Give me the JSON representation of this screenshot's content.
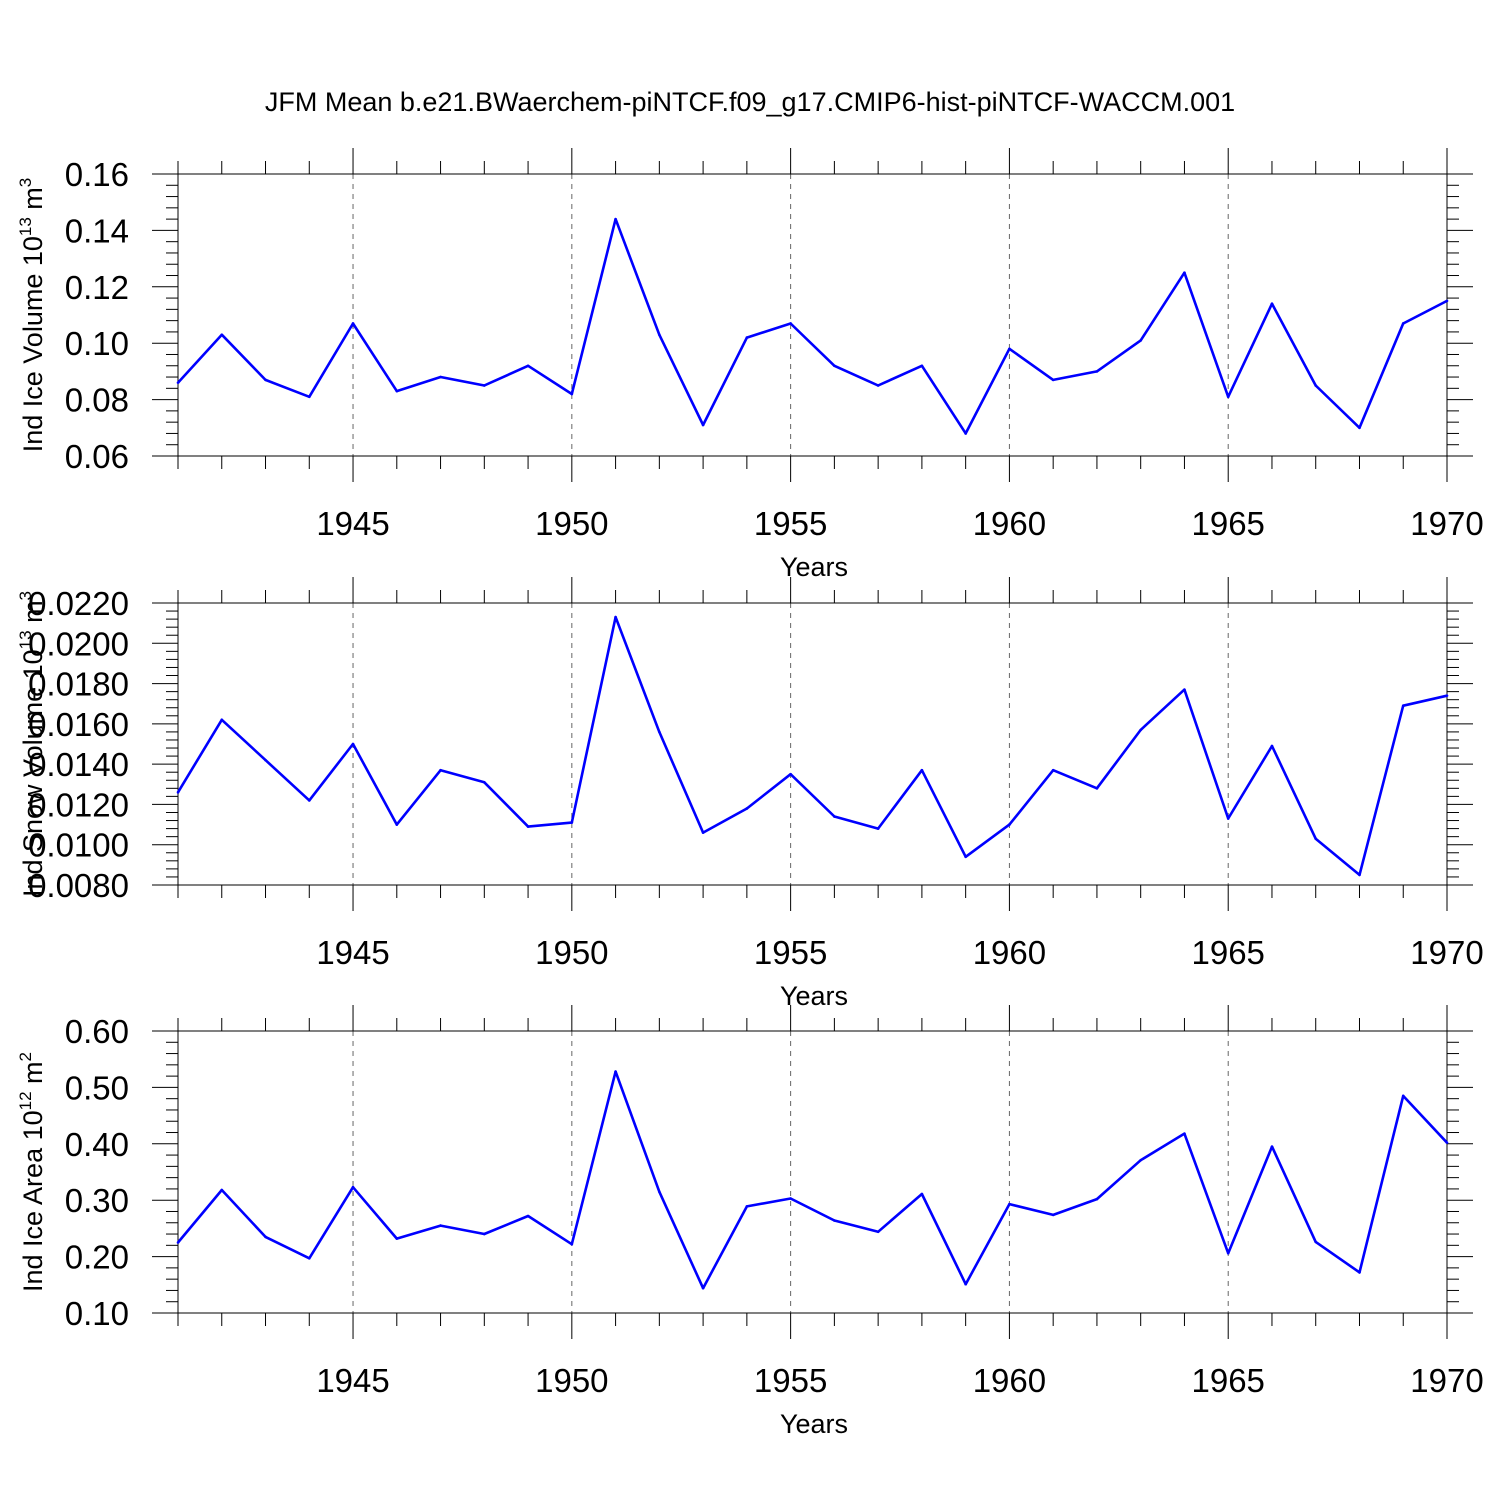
{
  "title": "JFM Mean b.e21.BWaerchem-piNTCF.f09_g17.CMIP6-hist-piNTCF-WACCM.001",
  "colors": {
    "line": "#0000ff",
    "axes": "#000000",
    "grid": "#666666"
  },
  "chart_data": [
    {
      "type": "line",
      "ylabel": {
        "text": "Ind Ice Volume 10",
        "sup": "13",
        "unit": " m",
        "unit_sup": "3"
      },
      "xlabel": "Years",
      "xlim": [
        1941,
        1970
      ],
      "ylim": [
        0.06,
        0.16
      ],
      "x_ticks": [
        1945,
        1950,
        1955,
        1960,
        1965,
        1970
      ],
      "x_tick_labels": [
        "1945",
        "1950",
        "1955",
        "1960",
        "1965",
        "1970"
      ],
      "y_ticks": [
        0.06,
        0.08,
        0.1,
        0.12,
        0.14,
        0.16
      ],
      "y_tick_labels": [
        "0.06",
        "0.08",
        "0.10",
        "0.12",
        "0.14",
        "0.16"
      ],
      "grid": "vertical dashed at labeled years",
      "x": [
        1941,
        1942,
        1943,
        1944,
        1945,
        1946,
        1947,
        1948,
        1949,
        1950,
        1951,
        1952,
        1953,
        1954,
        1955,
        1956,
        1957,
        1958,
        1959,
        1960,
        1961,
        1962,
        1963,
        1964,
        1965,
        1966,
        1967,
        1968,
        1969,
        1970
      ],
      "y": [
        0.086,
        0.103,
        0.087,
        0.081,
        0.107,
        0.083,
        0.088,
        0.085,
        0.092,
        0.082,
        0.144,
        0.103,
        0.071,
        0.102,
        0.107,
        0.092,
        0.085,
        0.092,
        0.068,
        0.098,
        0.087,
        0.09,
        0.101,
        0.125,
        0.081,
        0.114,
        0.085,
        0.07,
        0.107,
        0.115
      ]
    },
    {
      "type": "line",
      "ylabel": {
        "text": "Ind Snow Volume 10",
        "sup": "13",
        "unit": " m",
        "unit_sup": "3"
      },
      "xlabel": "Years",
      "xlim": [
        1941,
        1970
      ],
      "ylim": [
        0.008,
        0.022
      ],
      "x_ticks": [
        1945,
        1950,
        1955,
        1960,
        1965,
        1970
      ],
      "x_tick_labels": [
        "1945",
        "1950",
        "1955",
        "1960",
        "1965",
        "1970"
      ],
      "y_ticks": [
        0.008,
        0.01,
        0.012,
        0.014,
        0.016,
        0.018,
        0.02,
        0.022
      ],
      "y_tick_labels": [
        "0.0080",
        "0.0100",
        "0.0120",
        "0.0140",
        "0.0160",
        "0.0180",
        "0.0200",
        "0.0220"
      ],
      "grid": "vertical dashed at labeled years",
      "x": [
        1941,
        1942,
        1943,
        1944,
        1945,
        1946,
        1947,
        1948,
        1949,
        1950,
        1951,
        1952,
        1953,
        1954,
        1955,
        1956,
        1957,
        1958,
        1959,
        1960,
        1961,
        1962,
        1963,
        1964,
        1965,
        1966,
        1967,
        1968,
        1969,
        1970
      ],
      "y": [
        0.0126,
        0.0162,
        0.0142,
        0.0122,
        0.015,
        0.011,
        0.0137,
        0.0131,
        0.0109,
        0.0111,
        0.0213,
        0.0156,
        0.0106,
        0.0118,
        0.0135,
        0.0114,
        0.0108,
        0.0137,
        0.0094,
        0.011,
        0.0137,
        0.0128,
        0.0157,
        0.0177,
        0.0113,
        0.0149,
        0.0103,
        0.0085,
        0.0169,
        0.0174
      ]
    },
    {
      "type": "line",
      "ylabel": {
        "text": "Ind Ice Area 10",
        "sup": "12",
        "unit": " m",
        "unit_sup": "2"
      },
      "xlabel": "Years",
      "xlim": [
        1941,
        1970
      ],
      "ylim": [
        0.1,
        0.6
      ],
      "x_ticks": [
        1945,
        1950,
        1955,
        1960,
        1965,
        1970
      ],
      "x_tick_labels": [
        "1945",
        "1950",
        "1955",
        "1960",
        "1965",
        "1970"
      ],
      "y_ticks": [
        0.1,
        0.2,
        0.3,
        0.4,
        0.5,
        0.6
      ],
      "y_tick_labels": [
        "0.10",
        "0.20",
        "0.30",
        "0.40",
        "0.50",
        "0.60"
      ],
      "grid": "vertical dashed at labeled years",
      "x": [
        1941,
        1942,
        1943,
        1944,
        1945,
        1946,
        1947,
        1948,
        1949,
        1950,
        1951,
        1952,
        1953,
        1954,
        1955,
        1956,
        1957,
        1958,
        1959,
        1960,
        1961,
        1962,
        1963,
        1964,
        1965,
        1966,
        1967,
        1968,
        1969,
        1970
      ],
      "y": [
        0.225,
        0.318,
        0.235,
        0.197,
        0.323,
        0.232,
        0.255,
        0.24,
        0.272,
        0.222,
        0.528,
        0.315,
        0.144,
        0.289,
        0.303,
        0.264,
        0.244,
        0.311,
        0.151,
        0.293,
        0.274,
        0.302,
        0.371,
        0.418,
        0.206,
        0.395,
        0.226,
        0.172,
        0.485,
        0.402
      ]
    }
  ]
}
